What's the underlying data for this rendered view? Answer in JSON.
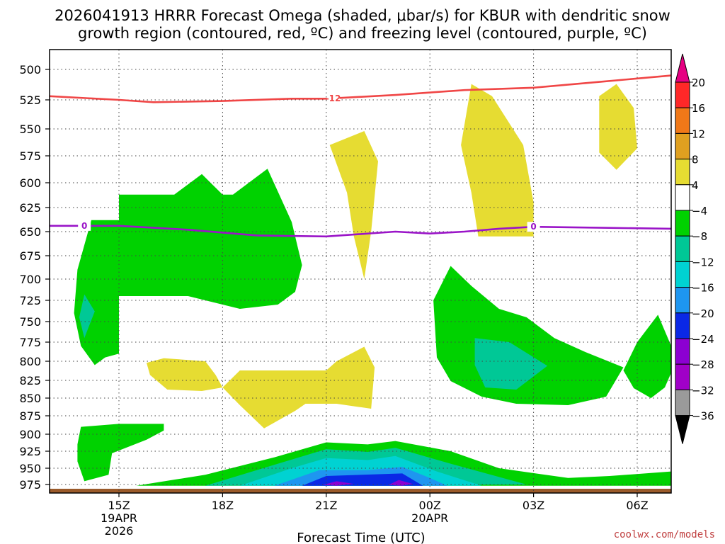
{
  "chart_data": {
    "type": "heatmap",
    "title_line1": "2026041913 HRRR Forecast Omega (shaded, μbar/s) for KBUR with dendritic snow",
    "title_line2": "growth region (contoured, red, ºC) and freezing level (contoured, purple, ºC)",
    "xlabel": "Forecast Time (UTC)",
    "credit": "coolwx.com/models",
    "pressure_levels": [
      "500",
      "525",
      "550",
      "575",
      "600",
      "625",
      "650",
      "675",
      "700",
      "725",
      "750",
      "775",
      "800",
      "825",
      "850",
      "875",
      "900",
      "925",
      "950",
      "975"
    ],
    "time_ticks": [
      {
        "label": "15Z",
        "sub1": "19APR",
        "sub2": "2026",
        "hour": 15
      },
      {
        "label": "18Z",
        "sub1": "",
        "sub2": "",
        "hour": 18
      },
      {
        "label": "21Z",
        "sub1": "",
        "sub2": "",
        "hour": 21
      },
      {
        "label": "00Z",
        "sub1": "20APR",
        "sub2": "",
        "hour": 24
      },
      {
        "label": "03Z",
        "sub1": "",
        "sub2": "",
        "hour": 27
      },
      {
        "label": "06Z",
        "sub1": "",
        "sub2": "",
        "hour": 30
      }
    ],
    "x_range_hours": [
      13,
      31
    ],
    "colorbar": {
      "labels": [
        "20",
        "16",
        "12",
        "8",
        "4",
        "−4",
        "−8",
        "−12",
        "−16",
        "−20",
        "−24",
        "−28",
        "−32",
        "−36"
      ],
      "colors": [
        "#ff2828",
        "#f07818",
        "#e0a020",
        "#e6dc32",
        "#ffffff",
        "#00d200",
        "#00c896",
        "#00d2d2",
        "#1e96f0",
        "#0a28e6",
        "#8c00d2",
        "#a000c8",
        "#9a9a9a"
      ],
      "top_color": "#e60082",
      "bottom_color": "#000000"
    },
    "contours": [
      {
        "name": "dendritic-isotherm",
        "value": "-12",
        "units": "°C",
        "color": "#f04646",
        "points": [
          [
            13,
            522
          ],
          [
            15,
            525
          ],
          [
            16,
            527
          ],
          [
            18,
            526
          ],
          [
            20,
            524
          ],
          [
            21,
            524
          ],
          [
            23,
            521
          ],
          [
            25,
            517
          ],
          [
            27,
            515
          ],
          [
            29,
            510
          ],
          [
            31,
            505
          ]
        ]
      },
      {
        "name": "freezing-level",
        "value": "0",
        "units": "°C",
        "color": "#9a14c8",
        "points": [
          [
            13,
            644
          ],
          [
            15,
            644
          ],
          [
            17,
            648
          ],
          [
            19,
            654
          ],
          [
            21,
            655
          ],
          [
            23,
            650
          ],
          [
            24,
            652
          ],
          [
            25,
            650
          ],
          [
            26,
            647
          ],
          [
            27,
            645
          ],
          [
            29,
            646
          ],
          [
            31,
            647
          ]
        ]
      }
    ],
    "shaded_regions": [
      {
        "name": "omega-upper-left-green",
        "color": "#00d200",
        "points": [
          [
            14.2,
            638
          ],
          [
            15,
            638
          ],
          [
            15,
            612
          ],
          [
            16.6,
            612
          ],
          [
            17.4,
            592
          ],
          [
            18,
            612
          ],
          [
            18.3,
            612
          ],
          [
            19.3,
            587
          ],
          [
            20,
            640
          ],
          [
            20.3,
            685
          ],
          [
            20.1,
            715
          ],
          [
            19.6,
            730
          ],
          [
            18.5,
            735
          ],
          [
            17,
            720
          ],
          [
            15,
            720
          ],
          [
            15,
            790
          ],
          [
            14.6,
            795
          ],
          [
            14.3,
            805
          ],
          [
            13.9,
            780
          ],
          [
            13.7,
            740
          ],
          [
            13.8,
            690
          ]
        ]
      },
      {
        "name": "omega-upper-left-teal",
        "color": "#00c896",
        "points": [
          [
            14.0,
            718
          ],
          [
            14.3,
            738
          ],
          [
            14.0,
            770
          ],
          [
            13.85,
            745
          ]
        ]
      },
      {
        "name": "omega-lower-left-green",
        "color": "#00d200",
        "points": [
          [
            13.9,
            890
          ],
          [
            15,
            886
          ],
          [
            16.3,
            886
          ],
          [
            16.3,
            895
          ],
          [
            15.8,
            908
          ],
          [
            14.8,
            928
          ],
          [
            14.7,
            960
          ],
          [
            14.0,
            970
          ],
          [
            13.8,
            940
          ],
          [
            13.8,
            915
          ]
        ]
      },
      {
        "name": "omega-right-green-core",
        "color": "#00d200",
        "points": [
          [
            24.6,
            686
          ],
          [
            25.2,
            708
          ],
          [
            26,
            735
          ],
          [
            26.8,
            745
          ],
          [
            27.6,
            770
          ],
          [
            28.5,
            788
          ],
          [
            29.6,
            808
          ],
          [
            29.1,
            848
          ],
          [
            28,
            860
          ],
          [
            26.5,
            858
          ],
          [
            25.5,
            848
          ],
          [
            24.6,
            826
          ],
          [
            24.2,
            795
          ],
          [
            24.1,
            725
          ]
        ]
      },
      {
        "name": "omega-right-teal",
        "color": "#00c896",
        "points": [
          [
            25.3,
            770
          ],
          [
            26.3,
            775
          ],
          [
            27.4,
            806
          ],
          [
            26.5,
            838
          ],
          [
            25.6,
            835
          ],
          [
            25.3,
            805
          ]
        ]
      },
      {
        "name": "omega-far-right-green",
        "color": "#00d200",
        "points": [
          [
            29.6,
            812
          ],
          [
            30,
            775
          ],
          [
            30.6,
            742
          ],
          [
            31,
            780
          ],
          [
            31,
            815
          ],
          [
            30.8,
            835
          ],
          [
            30.4,
            850
          ],
          [
            29.9,
            836
          ]
        ]
      },
      {
        "name": "omega-surface-green",
        "color": "#00d200",
        "points": [
          [
            15.5,
            978
          ],
          [
            17.5,
            960
          ],
          [
            19.5,
            934
          ],
          [
            21,
            912
          ],
          [
            22.2,
            915
          ],
          [
            23,
            910
          ],
          [
            24.6,
            925
          ],
          [
            26,
            950
          ],
          [
            28,
            965
          ],
          [
            29.2,
            962
          ],
          [
            31,
            955
          ],
          [
            31,
            978
          ]
        ]
      },
      {
        "name": "omega-surface-teal",
        "color": "#00c896",
        "points": [
          [
            17.5,
            978
          ],
          [
            19.3,
            948
          ],
          [
            21,
            922
          ],
          [
            22.2,
            926
          ],
          [
            23,
            920
          ],
          [
            24.5,
            942
          ],
          [
            26.8,
            975
          ]
        ]
      },
      {
        "name": "omega-surface-cyan",
        "color": "#00d2d2",
        "points": [
          [
            18.5,
            978
          ],
          [
            20,
            950
          ],
          [
            21,
            935
          ],
          [
            22.2,
            938
          ],
          [
            23,
            932
          ],
          [
            24.2,
            955
          ],
          [
            25.5,
            978
          ]
        ]
      },
      {
        "name": "omega-surface-lightblue",
        "color": "#1e96f0",
        "points": [
          [
            19.5,
            978
          ],
          [
            20.8,
            953
          ],
          [
            22.2,
            953
          ],
          [
            23.2,
            948
          ],
          [
            24,
            965
          ],
          [
            24.5,
            978
          ]
        ]
      },
      {
        "name": "omega-surface-blue",
        "color": "#0a28e6",
        "points": [
          [
            20.3,
            978
          ],
          [
            21,
            962
          ],
          [
            23.2,
            958
          ],
          [
            23.8,
            978
          ]
        ]
      },
      {
        "name": "omega-surface-purple-a",
        "color": "#8c00d2",
        "points": [
          [
            20.9,
            976
          ],
          [
            21.3,
            970
          ],
          [
            21.8,
            974
          ],
          [
            21.3,
            978
          ]
        ]
      },
      {
        "name": "omega-surface-purple-b",
        "color": "#8c00d2",
        "points": [
          [
            22.8,
            976
          ],
          [
            23.1,
            968
          ],
          [
            23.5,
            974
          ],
          [
            23.2,
            978
          ]
        ]
      },
      {
        "name": "omega-upward-yellow-a",
        "color": "#e6dc32",
        "points": [
          [
            21.1,
            565
          ],
          [
            22.1,
            552
          ],
          [
            22.5,
            580
          ],
          [
            22.3,
            650
          ],
          [
            22.1,
            700
          ],
          [
            21.8,
            655
          ],
          [
            21.6,
            610
          ]
        ]
      },
      {
        "name": "omega-upward-yellow-b",
        "color": "#e6dc32",
        "points": [
          [
            25.2,
            512
          ],
          [
            25.8,
            522
          ],
          [
            26.7,
            565
          ],
          [
            27.0,
            620
          ],
          [
            27.0,
            655
          ],
          [
            25.4,
            655
          ],
          [
            25.2,
            610
          ],
          [
            24.9,
            565
          ]
        ]
      },
      {
        "name": "omega-upward-yellow-c",
        "color": "#e6dc32",
        "points": [
          [
            29.4,
            512
          ],
          [
            29.9,
            532
          ],
          [
            30,
            568
          ],
          [
            29.4,
            588
          ],
          [
            28.9,
            572
          ],
          [
            28.9,
            522
          ]
        ]
      },
      {
        "name": "omega-upward-yellow-d",
        "color": "#e6dc32",
        "points": [
          [
            15.8,
            802
          ],
          [
            16.3,
            796
          ],
          [
            17.5,
            800
          ],
          [
            17.8,
            818
          ],
          [
            18,
            835
          ],
          [
            17.4,
            840
          ],
          [
            16.4,
            838
          ],
          [
            15.9,
            818
          ]
        ]
      },
      {
        "name": "omega-upward-yellow-e",
        "color": "#e6dc32",
        "points": [
          [
            18,
            835
          ],
          [
            18.5,
            812
          ],
          [
            21,
            812
          ],
          [
            21.3,
            800
          ],
          [
            22.1,
            781
          ],
          [
            22.4,
            808
          ],
          [
            22.3,
            865
          ],
          [
            21.3,
            858
          ],
          [
            20.4,
            858
          ],
          [
            20.1,
            868
          ],
          [
            19.2,
            892
          ],
          [
            18.5,
            860
          ]
        ]
      }
    ],
    "terrain_band": {
      "name": "surface-terrain",
      "color": "#9a5a2a",
      "from_pressure": 985
    }
  }
}
